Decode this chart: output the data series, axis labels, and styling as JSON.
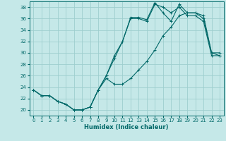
{
  "xlabel": "Humidex (Indice chaleur)",
  "bg_color": "#c5e8e8",
  "grid_color": "#9ecece",
  "line_color": "#006868",
  "xlim": [
    -0.5,
    23.5
  ],
  "ylim": [
    19.0,
    39.0
  ],
  "yticks": [
    20,
    22,
    24,
    26,
    28,
    30,
    32,
    34,
    36,
    38
  ],
  "xticks": [
    0,
    1,
    2,
    3,
    4,
    5,
    6,
    7,
    8,
    9,
    10,
    11,
    12,
    13,
    14,
    15,
    16,
    17,
    18,
    19,
    20,
    21,
    22,
    23
  ],
  "line1_x": [
    0,
    1,
    2,
    3,
    4,
    5,
    6,
    7,
    8,
    9,
    10,
    11,
    12,
    13,
    14,
    15,
    16,
    17,
    18,
    19,
    20,
    21,
    22,
    23
  ],
  "line1_y": [
    23.5,
    22.5,
    22.5,
    21.5,
    21.0,
    20.0,
    20.0,
    20.5,
    23.5,
    26.0,
    29.0,
    32.0,
    36.0,
    36.0,
    35.5,
    38.5,
    38.0,
    37.0,
    38.0,
    36.5,
    36.5,
    35.5,
    29.5,
    29.5
  ],
  "line2_x": [
    0,
    1,
    2,
    3,
    4,
    5,
    6,
    7,
    8,
    9,
    10,
    11,
    12,
    13,
    14,
    15,
    16,
    17,
    18,
    19,
    20,
    21,
    22,
    23
  ],
  "line2_y": [
    23.5,
    22.5,
    22.5,
    21.5,
    21.0,
    20.0,
    20.0,
    20.5,
    23.5,
    26.0,
    29.5,
    32.0,
    36.2,
    36.2,
    35.8,
    38.8,
    37.0,
    35.5,
    38.5,
    37.0,
    37.0,
    36.0,
    30.0,
    30.0
  ],
  "line3_x": [
    0,
    1,
    2,
    3,
    4,
    5,
    6,
    7,
    8,
    9,
    10,
    11,
    12,
    13,
    14,
    15,
    16,
    17,
    18,
    19,
    20,
    21,
    22,
    23
  ],
  "line3_y": [
    23.5,
    22.5,
    22.5,
    21.5,
    21.0,
    20.0,
    20.0,
    20.5,
    23.5,
    25.5,
    24.5,
    24.5,
    25.5,
    27.0,
    28.5,
    30.5,
    33.0,
    34.5,
    36.5,
    37.0,
    37.0,
    36.5,
    30.0,
    29.5
  ]
}
